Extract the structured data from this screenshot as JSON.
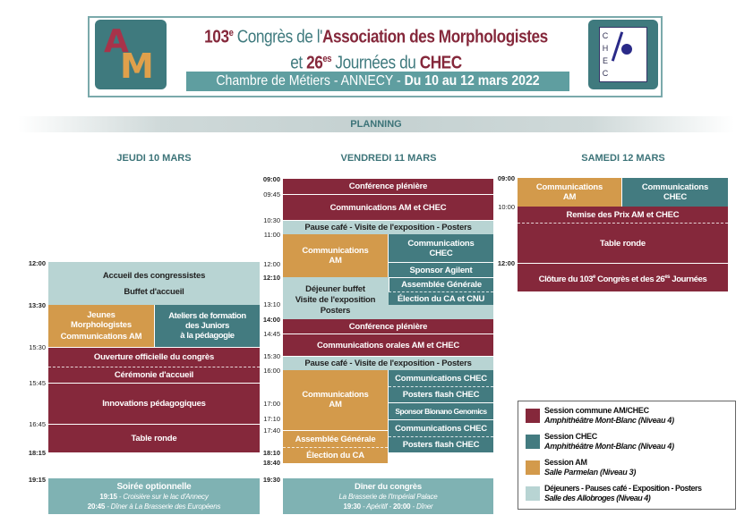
{
  "header": {
    "logo_left": "AM",
    "title_num": "103",
    "title_sup": "e",
    "title_a": " Congrès de l'",
    "title_b": "Association des Morphologistes",
    "line2_a": "et ",
    "line2_num": "26",
    "line2_sup": "es",
    "line2_b": " Journées du ",
    "line2_c": "CHEC",
    "venue": "Chambre de Métiers - ANNECY - ",
    "dates": "Du 10 au 12 mars 2022",
    "logo_right": "CHEC"
  },
  "planning_title": "PLANNING",
  "colors": {
    "commune": "#85283b",
    "chec": "#437b80",
    "am": "#d39a4b",
    "pause": "#b8d4d3",
    "soiree": "#7fb2b3"
  },
  "days": {
    "jeudi": {
      "title": "JEUDI 10 MARS",
      "times": [
        "12:00",
        "13:30",
        "15:30",
        "15:45",
        "16:45",
        "18:15",
        "19:15"
      ],
      "blocks": {
        "accueil": "Accueil des congressistes",
        "buffet": "Buffet d'accueil",
        "jeunes1": "Jeunes",
        "jeunes2": "Morphologistes",
        "jeunes3": "Communications AM",
        "ateliers1": "Ateliers de formation",
        "ateliers2": "des Juniors",
        "ateliers3": "à la pédagogie",
        "ouverture": "Ouverture officielle du congrès",
        "ceremonie": "Cérémonie d'accueil",
        "innovations": "Innovations pédagogiques",
        "table": "Table ronde",
        "soiree": "Soirée optionnelle",
        "s1t": "19:15",
        "s1": " - Croisière sur le lac d'Annecy",
        "s2t": "20:45",
        "s2": " - Dîner à La Brasserie des Européens"
      }
    },
    "vendredi": {
      "title": "VENDREDI 11 MARS",
      "times": [
        "09:00",
        "09:45",
        "10:30",
        "11:00",
        "12:00",
        "12:10",
        "13:10",
        "14:00",
        "14:45",
        "15:30",
        "16:00",
        "17:00",
        "17:10",
        "17:40",
        "18:10",
        "18:40",
        "19:30"
      ],
      "blocks": {
        "pleniere1": "Conférence plénière",
        "comm1": "Communications AM et CHEC",
        "pause1": "Pause café - Visite de l'exposition - Posters",
        "am1a": "Communications",
        "am1b": "AM",
        "chec1a": "Communications",
        "chec1b": "CHEC",
        "agilent": "Sponsor Agilent",
        "dej1": "Déjeuner buffet",
        "dej2": "Visite de l'exposition",
        "dej3": "Posters",
        "ag": "Assemblée Générale",
        "election_cnu": "Élection du CA et CNU",
        "pleniere2": "Conférence plénière",
        "orales": "Communications orales AM et CHEC",
        "pause2": "Pause café - Visite de l'exposition - Posters",
        "am2a": "Communications",
        "am2b": "AM",
        "chec2": "Communications CHEC",
        "flash1": "Posters flash CHEC",
        "bionano": "Sponsor Bionano Genomics",
        "chec3": "Communications CHEC",
        "flash2": "Posters flash CHEC",
        "ag2": "Assemblée Générale",
        "election": "Élection du CA",
        "diner": "Dîner du congrès",
        "diner_lieu": "La Brasserie de l'Impérial Palace",
        "d1t": "19:30",
        "d1": " - Apéritif - ",
        "d2t": "20:00",
        "d2": " - Dîner"
      }
    },
    "samedi": {
      "title": "SAMEDI 12 MARS",
      "times": [
        "09:00",
        "10:00",
        "12:00"
      ],
      "blocks": {
        "am_a": "Communications",
        "am_b": "AM",
        "chec_a": "Communications",
        "chec_b": "CHEC",
        "remise": "Remise des Prix AM et CHEC",
        "table": "Table ronde",
        "cloture_a": "Clôture du 103",
        "cloture_sup1": "e",
        "cloture_b": " Congrès et des 26",
        "cloture_sup2": "es",
        "cloture_c": " Journées"
      }
    }
  },
  "legend": [
    {
      "title": "Session commune AM/CHEC",
      "place": "Amphithéâtre Mont-Blanc (Niveau 4)"
    },
    {
      "title": "Session CHEC",
      "place": "Amphithéâtre Mont-Blanc (Niveau 4)"
    },
    {
      "title": "Session AM",
      "place": "Salle Parmelan (Niveau 3)"
    },
    {
      "title": "Déjeuners - Pauses café - Exposition - Posters",
      "place": "Salle des Allobroges (Niveau 4)"
    }
  ]
}
